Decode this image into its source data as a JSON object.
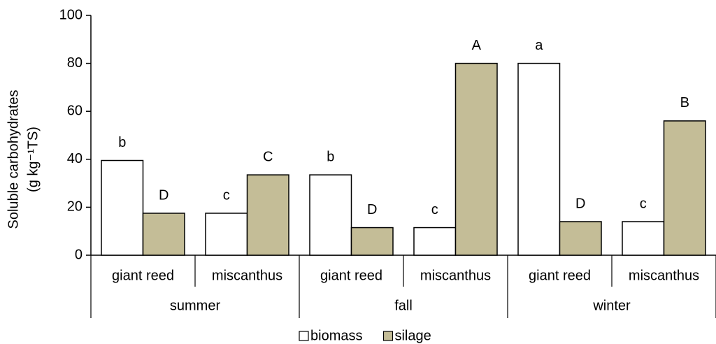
{
  "chart_data": {
    "type": "bar",
    "y_label": [
      "Soluble carbohydrates",
      "(g kg⁻¹TS)"
    ],
    "groups": [
      "summer",
      "fall",
      "winter"
    ],
    "categories": [
      "giant reed",
      "miscanthus",
      "giant reed",
      "miscanthus",
      "giant reed",
      "miscanthus"
    ],
    "series": [
      {
        "name": "biomass",
        "color": "#ffffff",
        "values": [
          39.5,
          17.5,
          33.5,
          11.5,
          80,
          14
        ],
        "value_labels": [
          "b",
          "c",
          "b",
          "c",
          "a",
          "c"
        ]
      },
      {
        "name": "silage",
        "color": "#c4bd97",
        "values": [
          17.5,
          33.5,
          11.5,
          80,
          14,
          56
        ],
        "value_labels": [
          "D",
          "C",
          "D",
          "A",
          "D",
          "B"
        ]
      }
    ],
    "ylim": [
      0,
      100
    ],
    "yticks": [
      0,
      20,
      40,
      60,
      80,
      100
    ],
    "grid": false
  }
}
